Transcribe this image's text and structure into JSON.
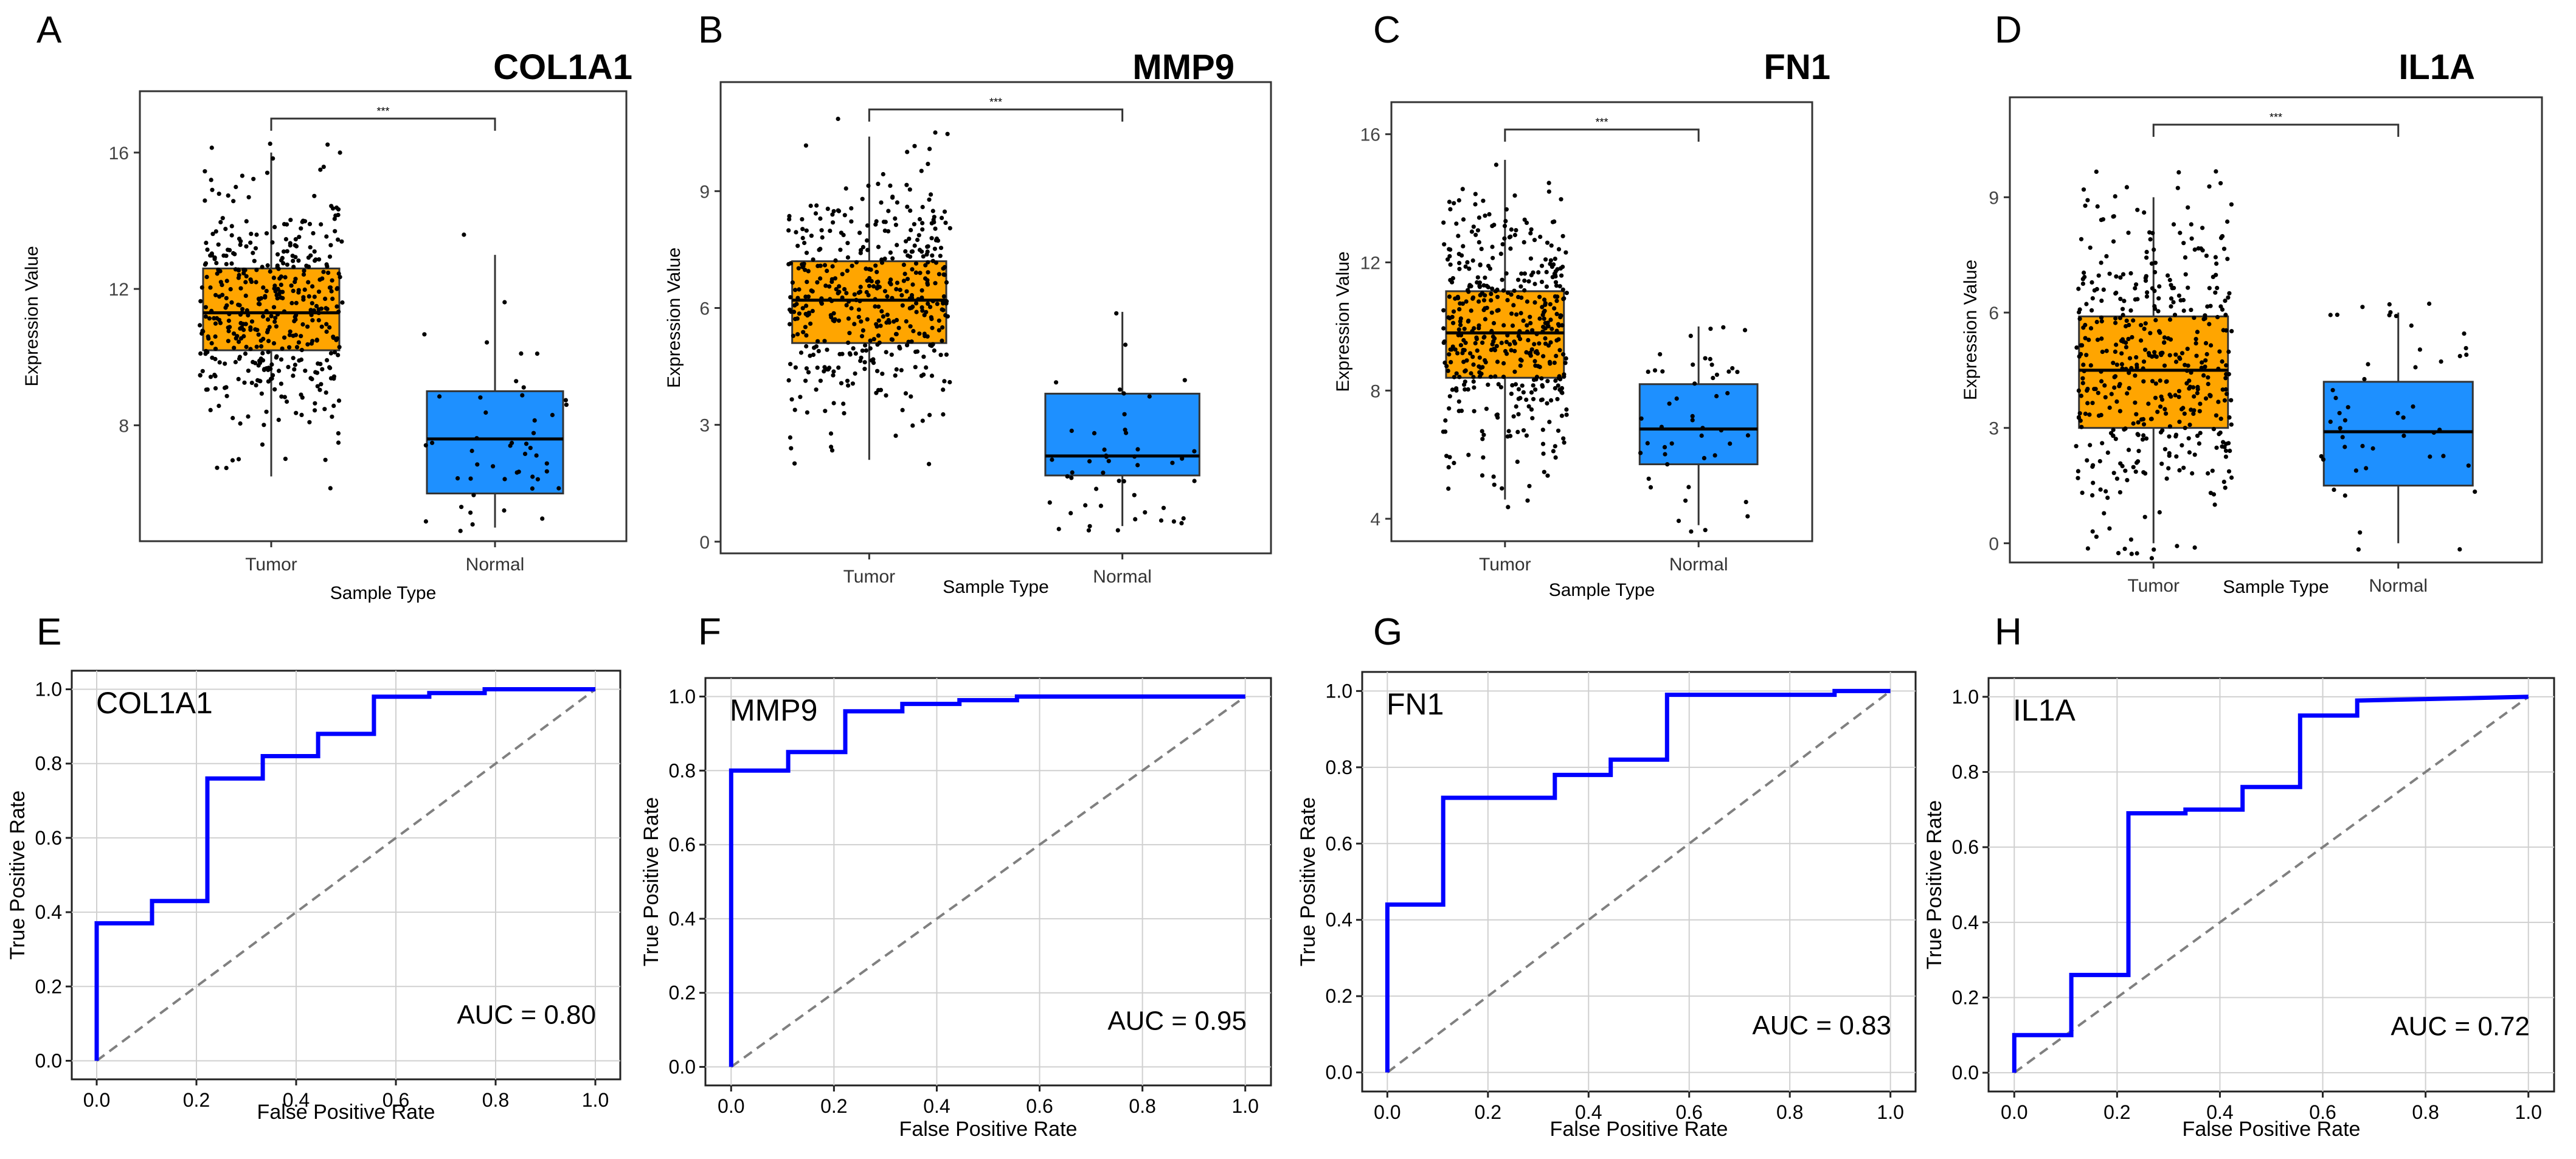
{
  "colors": {
    "tumor": "#FFA500",
    "normal": "#1E90FF",
    "roc": "#0000FF",
    "diagonal": "#808080",
    "points": "#000000",
    "grid": "#d0d0d0"
  },
  "chart_data": [
    {
      "panel": "A",
      "type": "box",
      "title": "COL1A1",
      "categories": [
        "Tumor",
        "Normal"
      ],
      "xlabel": "Sample Type",
      "ylabel": "Expression Value",
      "ylim": [
        4.6,
        17.8
      ],
      "yticks": [
        8,
        12,
        16
      ],
      "significance": "***",
      "boxes": [
        {
          "group": "Tumor",
          "min": 6.5,
          "q1": 10.2,
          "median": 11.3,
          "q3": 12.6,
          "max": 16.0,
          "n": 450
        },
        {
          "group": "Normal",
          "min": 5.0,
          "q1": 6.0,
          "median": 7.6,
          "q3": 9.0,
          "max": 13.0,
          "n": 48
        }
      ]
    },
    {
      "panel": "B",
      "type": "box",
      "title": "MMP9",
      "categories": [
        "Tumor",
        "Normal"
      ],
      "xlabel": "Sample Type",
      "ylabel": "Expression Value",
      "ylim": [
        -0.3,
        11.8
      ],
      "yticks": [
        0,
        3,
        6,
        9
      ],
      "significance": "***",
      "boxes": [
        {
          "group": "Tumor",
          "min": 2.1,
          "q1": 5.1,
          "median": 6.2,
          "q3": 7.2,
          "max": 10.4,
          "n": 450
        },
        {
          "group": "Normal",
          "min": 0.4,
          "q1": 1.7,
          "median": 2.2,
          "q3": 3.8,
          "max": 5.9,
          "n": 48
        }
      ]
    },
    {
      "panel": "C",
      "type": "box",
      "title": "FN1",
      "categories": [
        "Tumor",
        "Normal"
      ],
      "xlabel": "Sample Type",
      "ylabel": "Expression Value",
      "ylim": [
        3.3,
        17.0
      ],
      "yticks": [
        4,
        8,
        12,
        16
      ],
      "significance": "***",
      "boxes": [
        {
          "group": "Tumor",
          "min": 4.6,
          "q1": 8.4,
          "median": 9.8,
          "q3": 11.1,
          "max": 15.2,
          "n": 450
        },
        {
          "group": "Normal",
          "min": 3.8,
          "q1": 5.7,
          "median": 6.8,
          "q3": 8.2,
          "max": 10.0,
          "n": 48
        }
      ]
    },
    {
      "panel": "D",
      "type": "box",
      "title": "IL1A",
      "categories": [
        "Tumor",
        "Normal"
      ],
      "xlabel": "Sample Type",
      "ylabel": "Expression Value",
      "ylim": [
        -0.5,
        11.6
      ],
      "yticks": [
        0,
        3,
        6,
        9
      ],
      "significance": "***",
      "boxes": [
        {
          "group": "Tumor",
          "min": 0.0,
          "q1": 3.0,
          "median": 4.5,
          "q3": 5.9,
          "max": 9.0,
          "n": 450
        },
        {
          "group": "Normal",
          "min": 0.0,
          "q1": 1.5,
          "median": 2.9,
          "q3": 4.2,
          "max": 6.0,
          "n": 48
        }
      ]
    },
    {
      "panel": "E",
      "type": "line",
      "title": "COL1A1",
      "xlabel": "False Positive Rate",
      "ylabel": "True Positive Rate",
      "xlim": [
        -0.05,
        1.05
      ],
      "ylim": [
        -0.05,
        1.05
      ],
      "xticks": [
        0.0,
        0.2,
        0.4,
        0.6,
        0.8,
        1.0
      ],
      "yticks": [
        0.0,
        0.2,
        0.4,
        0.6,
        0.8,
        1.0
      ],
      "auc_label": "AUC = 0.80",
      "x": [
        0,
        0,
        0.111,
        0.111,
        0.222,
        0.222,
        0.333,
        0.333,
        0.444,
        0.444,
        0.556,
        0.556,
        0.667,
        0.667,
        0.778,
        0.778,
        1.0
      ],
      "y": [
        0,
        0.37,
        0.37,
        0.43,
        0.43,
        0.76,
        0.76,
        0.82,
        0.82,
        0.88,
        0.88,
        0.98,
        0.98,
        0.99,
        0.99,
        1.0,
        1.0
      ]
    },
    {
      "panel": "F",
      "type": "line",
      "title": "MMP9",
      "xlabel": "False Positive Rate",
      "ylabel": "True Positive Rate",
      "xlim": [
        -0.05,
        1.05
      ],
      "ylim": [
        -0.05,
        1.05
      ],
      "xticks": [
        0.0,
        0.2,
        0.4,
        0.6,
        0.8,
        1.0
      ],
      "yticks": [
        0.0,
        0.2,
        0.4,
        0.6,
        0.8,
        1.0
      ],
      "auc_label": "AUC = 0.95",
      "x": [
        0,
        0,
        0.111,
        0.111,
        0.222,
        0.222,
        0.333,
        0.333,
        0.444,
        0.444,
        0.556,
        0.556,
        1.0
      ],
      "y": [
        0,
        0.8,
        0.8,
        0.85,
        0.85,
        0.96,
        0.96,
        0.98,
        0.98,
        0.99,
        0.99,
        1.0,
        1.0
      ]
    },
    {
      "panel": "G",
      "type": "line",
      "title": "FN1",
      "xlabel": "False Positive Rate",
      "ylabel": "True Positive Rate",
      "xlim": [
        -0.05,
        1.05
      ],
      "ylim": [
        -0.05,
        1.05
      ],
      "xticks": [
        0.0,
        0.2,
        0.4,
        0.6,
        0.8,
        1.0
      ],
      "yticks": [
        0.0,
        0.2,
        0.4,
        0.6,
        0.8,
        1.0
      ],
      "auc_label": "AUC = 0.83",
      "x": [
        0,
        0,
        0.111,
        0.111,
        0.333,
        0.333,
        0.444,
        0.444,
        0.556,
        0.556,
        0.889,
        0.889,
        1.0
      ],
      "y": [
        0,
        0.44,
        0.44,
        0.72,
        0.72,
        0.78,
        0.78,
        0.82,
        0.82,
        0.99,
        0.99,
        1.0,
        1.0
      ]
    },
    {
      "panel": "H",
      "type": "line",
      "title": "IL1A",
      "xlabel": "False Positive Rate",
      "ylabel": "True Positive Rate",
      "xlim": [
        -0.05,
        1.05
      ],
      "ylim": [
        -0.05,
        1.05
      ],
      "xticks": [
        0.0,
        0.2,
        0.4,
        0.6,
        0.8,
        1.0
      ],
      "yticks": [
        0.0,
        0.2,
        0.4,
        0.6,
        0.8,
        1.0
      ],
      "auc_label": "AUC = 0.72",
      "x": [
        0,
        0,
        0.111,
        0.111,
        0.222,
        0.222,
        0.333,
        0.333,
        0.444,
        0.444,
        0.556,
        0.556,
        0.667,
        0.667,
        1.0
      ],
      "y": [
        0,
        0.1,
        0.1,
        0.26,
        0.26,
        0.69,
        0.69,
        0.7,
        0.7,
        0.76,
        0.76,
        0.95,
        0.95,
        0.99,
        1.0
      ]
    }
  ]
}
